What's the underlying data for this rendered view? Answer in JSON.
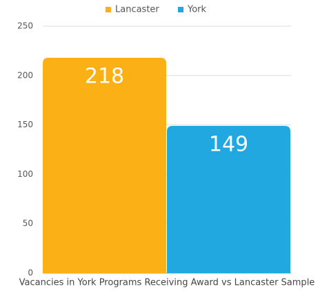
{
  "chart_data": {
    "type": "bar",
    "categories": [
      "Vacancies in York Programs Receiving Award vs Lancaster Sample"
    ],
    "series": [
      {
        "name": "Lancaster",
        "color": "#fbb015",
        "values": [
          218
        ]
      },
      {
        "name": "York",
        "color": "#21a8e0",
        "values": [
          149
        ]
      }
    ],
    "ylim": [
      0,
      250
    ],
    "yticks": [
      0,
      50,
      100,
      150,
      200,
      250
    ],
    "grid": true,
    "legend": "top"
  }
}
